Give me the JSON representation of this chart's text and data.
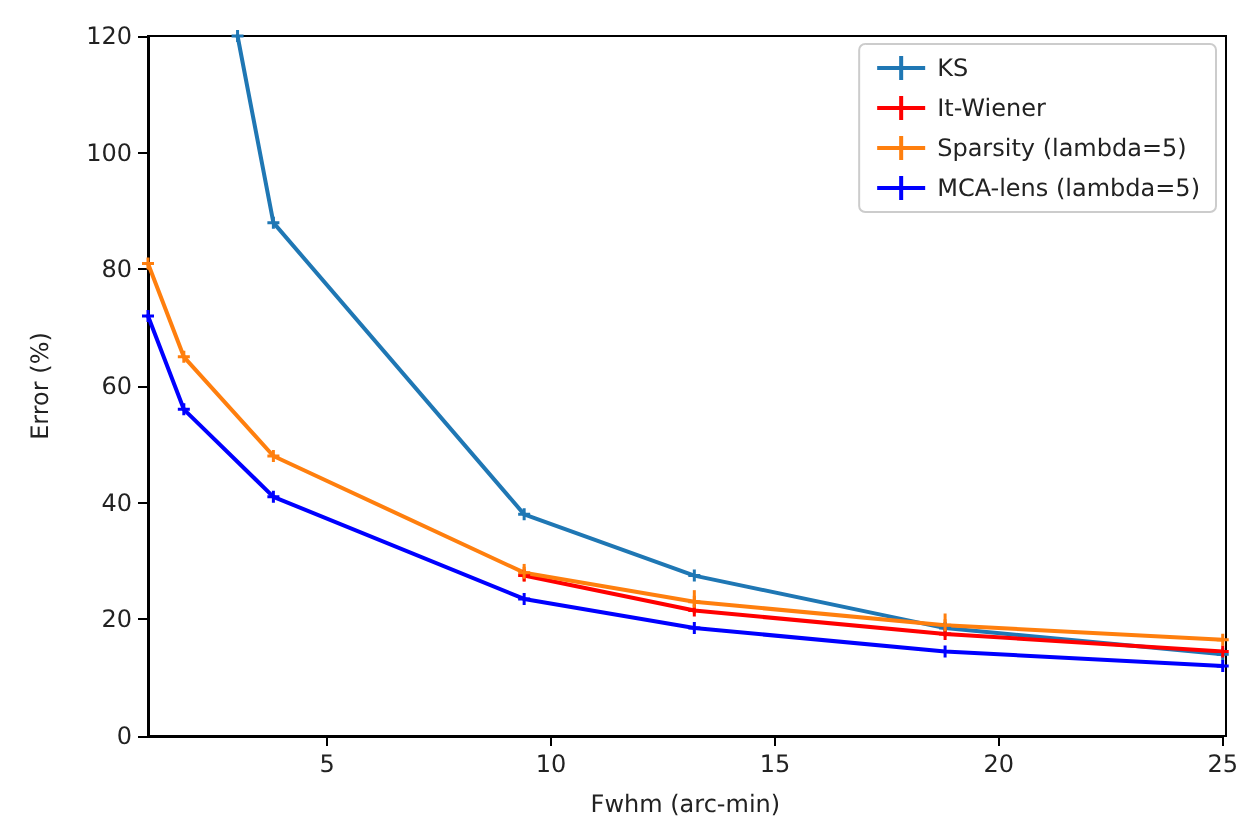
{
  "chart_data": {
    "type": "line",
    "xlabel": "Fwhm (arc-min)",
    "ylabel": "Error (%)",
    "x": [
      1,
      1.8,
      3.8,
      9.4,
      13.2,
      18.8,
      25
    ],
    "series": [
      {
        "name": "KS",
        "color": "#1f77b4",
        "x": [
          3.0,
          3.8,
          9.4,
          13.2,
          18.8,
          25
        ],
        "values": [
          120,
          88,
          38,
          27.5,
          18.5,
          14
        ]
      },
      {
        "name": "It-Wiener",
        "color": "#ff0000",
        "values": [
          null,
          null,
          null,
          27.5,
          21.5,
          17.5,
          14.5
        ]
      },
      {
        "name": "Sparsity (lambda=5)",
        "color": "#ff7f0e",
        "values": [
          81,
          65,
          48,
          28,
          23,
          19,
          16.5
        ],
        "errors": [
          null,
          null,
          null,
          1.5,
          2,
          2,
          null
        ]
      },
      {
        "name": "MCA-lens (lambda=5)",
        "color": "#0000ff",
        "values": [
          72,
          56,
          41,
          23.5,
          18.5,
          14.5,
          12
        ]
      }
    ],
    "xlim": [
      1,
      25
    ],
    "xticks": [
      5,
      10,
      15,
      20,
      25
    ],
    "ylim": [
      0,
      120
    ],
    "yticks": [
      0,
      20,
      40,
      60,
      80,
      100,
      120
    ],
    "grid": false,
    "legend": "top right",
    "marker": "cross"
  }
}
